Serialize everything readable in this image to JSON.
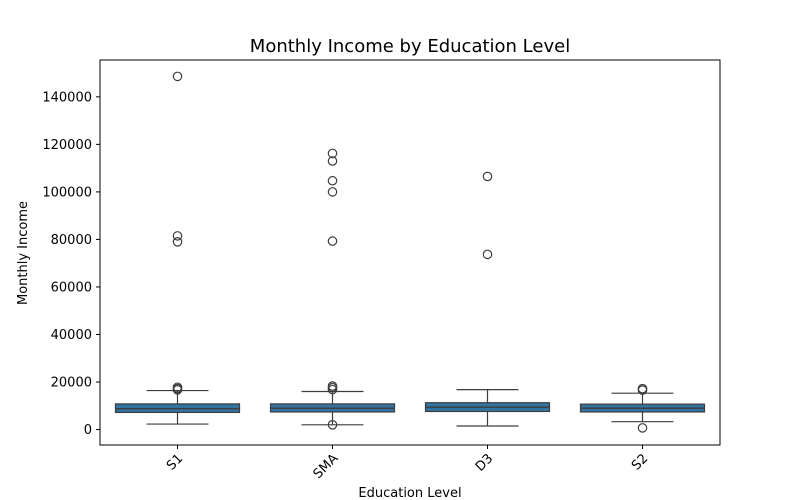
{
  "chart_data": {
    "type": "box",
    "title": "Monthly Income by Education Level",
    "xlabel": "Education Level",
    "ylabel": "Monthly Income",
    "categories": [
      "S1",
      "SMA",
      "D3",
      "S2"
    ],
    "ylim": [
      -6500,
      155500
    ],
    "yticks": [
      0,
      20000,
      40000,
      60000,
      80000,
      100000,
      120000,
      140000
    ],
    "grid": false,
    "colors": {
      "box": "#3274a1",
      "line": "#3d3d3d"
    },
    "boxes": [
      {
        "category": "S1",
        "whisker_low": 2300,
        "q1": 7200,
        "median": 8800,
        "q3": 10800,
        "whisker_high": 16400,
        "outliers": [
          148600,
          81500,
          79000,
          17800,
          17200,
          16700
        ]
      },
      {
        "category": "SMA",
        "whisker_low": 2000,
        "q1": 7400,
        "median": 9000,
        "q3": 10800,
        "whisker_high": 16000,
        "outliers": [
          116200,
          113000,
          104700,
          100000,
          79300,
          18300,
          17600,
          16800,
          2000
        ]
      },
      {
        "category": "D3",
        "whisker_low": 1500,
        "q1": 7600,
        "median": 9400,
        "q3": 11300,
        "whisker_high": 16800,
        "outliers": [
          106500,
          73700
        ]
      },
      {
        "category": "S2",
        "whisker_low": 3300,
        "q1": 7400,
        "median": 9000,
        "q3": 10700,
        "whisker_high": 15300,
        "outliers": [
          17200,
          16600,
          700
        ]
      }
    ]
  }
}
